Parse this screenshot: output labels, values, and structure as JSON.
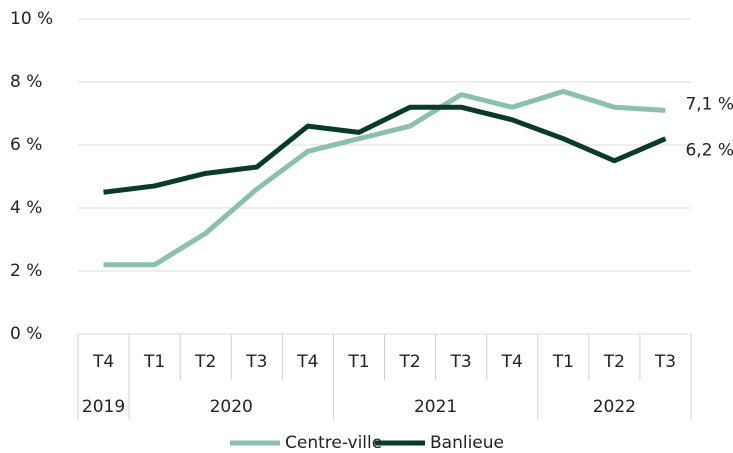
{
  "chart_data": {
    "type": "line",
    "categories": [
      "T4",
      "T1",
      "T2",
      "T3",
      "T4",
      "T1",
      "T2",
      "T3",
      "T4",
      "T1",
      "T2",
      "T3"
    ],
    "x_groups": [
      "2019",
      "2020",
      "2020",
      "2020",
      "2020",
      "2021",
      "2021",
      "2021",
      "2021",
      "2022",
      "2022",
      "2022"
    ],
    "series": [
      {
        "name": "Centre-ville",
        "color": "#8cc0ae",
        "values": [
          2.2,
          2.2,
          3.2,
          4.6,
          5.8,
          6.2,
          6.6,
          7.6,
          7.2,
          7.7,
          7.2,
          7.1
        ],
        "value_labels": [
          null,
          null,
          null,
          null,
          null,
          null,
          null,
          null,
          null,
          null,
          null,
          "7,1 %"
        ]
      },
      {
        "name": "Banlieue",
        "color": "#0a3b29",
        "values": [
          4.5,
          4.7,
          5.1,
          5.3,
          6.6,
          6.4,
          7.2,
          7.2,
          6.8,
          6.2,
          5.5,
          6.2
        ],
        "value_labels": [
          null,
          null,
          null,
          null,
          null,
          null,
          null,
          null,
          null,
          null,
          null,
          "6,2 %"
        ]
      }
    ],
    "ylim": [
      0,
      10
    ],
    "yticks": [
      {
        "value": 0,
        "label": "0 %"
      },
      {
        "value": 2,
        "label": "2 %"
      },
      {
        "value": 4,
        "label": "4 %"
      },
      {
        "value": 6,
        "label": "6 %"
      },
      {
        "value": 8,
        "label": "8 %"
      },
      {
        "value": 10,
        "label": "10 %"
      }
    ],
    "grid": true,
    "legend": "bottom"
  }
}
